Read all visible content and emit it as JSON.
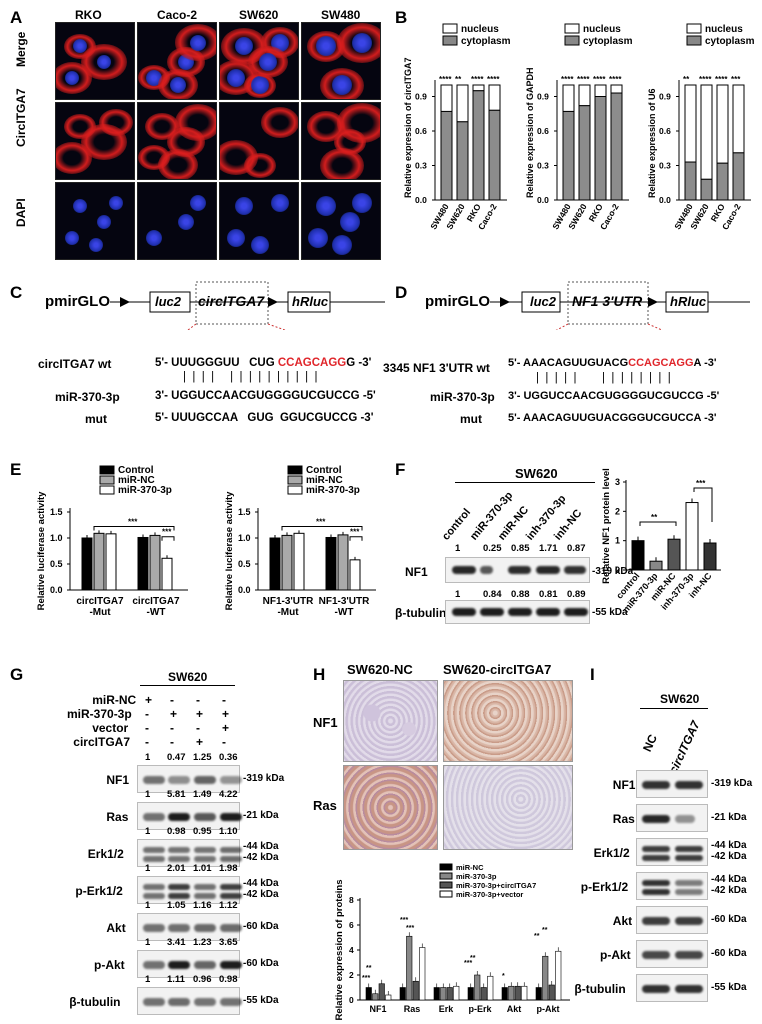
{
  "panels": {
    "A": "A",
    "B": "B",
    "C": "C",
    "D": "D",
    "E": "E",
    "F": "F",
    "G": "G",
    "H": "H",
    "I": "I"
  },
  "panelA": {
    "cols": [
      "RKO",
      "Caco-2",
      "SW620",
      "SW480"
    ],
    "rows": [
      "Merge",
      "CircITGA7",
      "DAPI"
    ]
  },
  "panelB": {
    "legend": [
      "nucleus",
      "cytoplasm"
    ],
    "charts": [
      {
        "ylabel": "Relative expression of circITGA7",
        "cats": [
          "SW480",
          "SW620",
          "RKO",
          "Caco-2"
        ],
        "cyto": [
          0.77,
          0.68,
          0.95,
          0.78
        ],
        "sig": [
          "****",
          "**",
          "****",
          "****"
        ]
      },
      {
        "ylabel": "Relative expression of GAPDH",
        "cats": [
          "SW480",
          "SW620",
          "RKO",
          "Caco-2"
        ],
        "cyto": [
          0.77,
          0.82,
          0.9,
          0.93
        ],
        "sig": [
          "****",
          "****",
          "****",
          "****"
        ]
      },
      {
        "ylabel": "Relative expression of U6",
        "cats": [
          "SW480",
          "SW620",
          "RKO",
          "Caco-2"
        ],
        "cyto": [
          0.33,
          0.18,
          0.32,
          0.41
        ],
        "sig": [
          "**",
          "****",
          "****",
          "***"
        ]
      }
    ],
    "yticks": [
      "0.0",
      "0.3",
      "0.6",
      "0.9"
    ]
  },
  "panelC": {
    "vector": "pmirGLO",
    "luc": "luc2",
    "insert": "circITGA7",
    "hrluc": "hRluc",
    "wt_label": "circITGA7 wt",
    "wt_seq_a": "5'- UUUGGGUU   CUG ",
    "wt_seq_red": "CCAGCAGG",
    "wt_seq_b": "G -3'",
    "mir_label": "miR-370-3p",
    "mir_seq": "3'- UGGUCCAACGUGGGGUCGUCCG -5'",
    "mut_label": "mut",
    "mut_seq": "5'- UUUGCCAA   GUG  GGUCGUCCG -3'",
    "bars": "|  |  |  |     |  |  |  |  |  |  |  |  |  |"
  },
  "panelD": {
    "vector": "pmirGLO",
    "luc": "luc2",
    "insert": "NF1 3'UTR",
    "hrluc": "hRluc",
    "wt_label": "3345 NF1 3'UTR wt",
    "wt_seq_a": "5'- AAACAGUUGUACG",
    "wt_seq_red": "CCAGCAGG",
    "wt_seq_b": "A -3'",
    "mir_label": "miR-370-3p",
    "mir_seq": "3'- UGGUCCAACGUGGGGUCGUCCG -5'",
    "mut_label": "mut",
    "mut_seq": "5'- AAACAGUUGUACGGGUCGUCCA -3'",
    "bars": "|  |  |  |  |        |  |  |  |  |  |  |  |"
  },
  "panelE": {
    "legend": [
      "Control",
      "miR-NC",
      "miR-370-3p"
    ],
    "ylabel": "Relative luciferase activity",
    "yticks": [
      "0.0",
      "0.5",
      "1.0",
      "1.5"
    ],
    "charts": [
      {
        "groups": [
          "circITGA7\n-Mut",
          "circITGA7\n-WT"
        ],
        "g1": [
          "circITGA7",
          "-Mut"
        ],
        "g2": [
          "circITGA7",
          "-WT"
        ],
        "values": [
          [
            1.0,
            1.09,
            1.08
          ],
          [
            1.01,
            1.05,
            0.61
          ]
        ]
      },
      {
        "groups": [
          "NF1-3'UTR\n-Mut",
          "NF1-3'UTR\n-WT"
        ],
        "g1": [
          "NF1-3'UTR",
          "-Mut"
        ],
        "g2": [
          "NF1-3'UTR",
          "-WT"
        ],
        "values": [
          [
            1.0,
            1.05,
            1.09
          ],
          [
            1.01,
            1.06,
            0.58
          ]
        ]
      }
    ],
    "sig": "***"
  },
  "panelF": {
    "header": "SW620",
    "lanes": [
      "control",
      "miR-370-3p",
      "miR-NC",
      "inh-370-3p",
      "inh-NC"
    ],
    "nf1_vals": [
      "1",
      "0.25",
      "0.85",
      "1.71",
      "0.87"
    ],
    "tub_vals": [
      "1",
      "0.84",
      "0.88",
      "0.81",
      "0.89"
    ],
    "nf1_label": "NF1",
    "nf1_kda": "319 kDa",
    "tub_label": "β-tubulin",
    "tub_kda": "55 kDa",
    "chart": {
      "ylabel": "Relative NF1 protein level",
      "cats": [
        "control",
        "miR-370-3p",
        "miR-NC",
        "inh-370-3p",
        "inh-NC"
      ],
      "values": [
        1.0,
        0.3,
        1.05,
        2.3,
        0.92
      ],
      "yticks": [
        "0",
        "1",
        "2",
        "3"
      ],
      "sig": [
        "**",
        "***"
      ]
    }
  },
  "panelG": {
    "header": "SW620",
    "conds": [
      {
        "label": "miR-NC",
        "signs": [
          "+",
          "-",
          "-",
          "-"
        ]
      },
      {
        "label": "miR-370-3p",
        "signs": [
          "-",
          "+",
          "+",
          "+"
        ]
      },
      {
        "label": "vector",
        "signs": [
          "-",
          "-",
          "-",
          "+"
        ]
      },
      {
        "label": "circITGA7",
        "signs": [
          "-",
          "-",
          "+",
          "-"
        ]
      }
    ],
    "rows": [
      {
        "name": "NF1",
        "kda": [
          "319 kDa"
        ],
        "vals": [
          "1",
          "0.47",
          "1.25",
          "0.36"
        ]
      },
      {
        "name": "Ras",
        "kda": [
          "21 kDa"
        ],
        "vals": [
          "1",
          "5.81",
          "1.49",
          "4.22"
        ]
      },
      {
        "name": "Erk1/2",
        "kda": [
          "44 kDa",
          "42 kDa"
        ],
        "vals": [
          "1",
          "0.98",
          "0.95",
          "1.10"
        ]
      },
      {
        "name": "p-Erk1/2",
        "kda": [
          "44 kDa",
          "42 kDa"
        ],
        "vals": [
          "1",
          "2.01",
          "1.01",
          "1.98"
        ]
      },
      {
        "name": "Akt",
        "kda": [
          "60 kDa"
        ],
        "vals": [
          "1",
          "1.05",
          "1.16",
          "1.12"
        ]
      },
      {
        "name": "p-Akt",
        "kda": [
          "60 kDa"
        ],
        "vals": [
          "1",
          "3.41",
          "1.23",
          "3.65"
        ]
      },
      {
        "name": "β-tubulin",
        "kda": [
          "55 kDa"
        ],
        "vals": [
          "1",
          "1.11",
          "0.96",
          "0.98"
        ]
      }
    ]
  },
  "panelH": {
    "col1": "SW620-NC",
    "col2": "SW620-circITGA7",
    "row1": "NF1",
    "row2": "Ras",
    "chart": {
      "ylabel": "Relative expression of proteins",
      "cats": [
        "NF1",
        "Ras",
        "Erk",
        "p-Erk",
        "Akt",
        "p-Akt"
      ],
      "legend": [
        "miR-NC",
        "miR-370-3p",
        "miR-370-3p+circITGA7",
        "miR-370-3p+vector"
      ],
      "yticks": [
        "0",
        "2",
        "4",
        "6",
        "8"
      ],
      "series": [
        [
          1.0,
          1.0,
          1.0,
          1.0,
          1.0,
          1.0
        ],
        [
          0.5,
          5.1,
          1.0,
          2.0,
          1.1,
          3.5
        ],
        [
          1.3,
          1.5,
          1.0,
          1.0,
          1.1,
          1.2
        ],
        [
          0.4,
          4.2,
          1.1,
          1.9,
          1.1,
          3.9
        ]
      ],
      "sig": [
        "***",
        "**",
        "***",
        "***",
        "***",
        "**",
        "*",
        "**",
        "**"
      ]
    }
  },
  "panelI": {
    "header": "SW620",
    "lanes": [
      "NC",
      "circITGA7"
    ],
    "rows": [
      {
        "name": "NF1",
        "kda": [
          "319 kDa"
        ]
      },
      {
        "name": "Ras",
        "kda": [
          "21 kDa"
        ]
      },
      {
        "name": "Erk1/2",
        "kda": [
          "44 kDa",
          "42 kDa"
        ]
      },
      {
        "name": "p-Erk1/2",
        "kda": [
          "44 kDa",
          "42 kDa"
        ]
      },
      {
        "name": "Akt",
        "kda": [
          "60 kDa"
        ]
      },
      {
        "name": "p-Akt",
        "kda": [
          "60 kDa"
        ]
      },
      {
        "name": "β-tubulin",
        "kda": [
          "55 kDa"
        ]
      }
    ]
  }
}
